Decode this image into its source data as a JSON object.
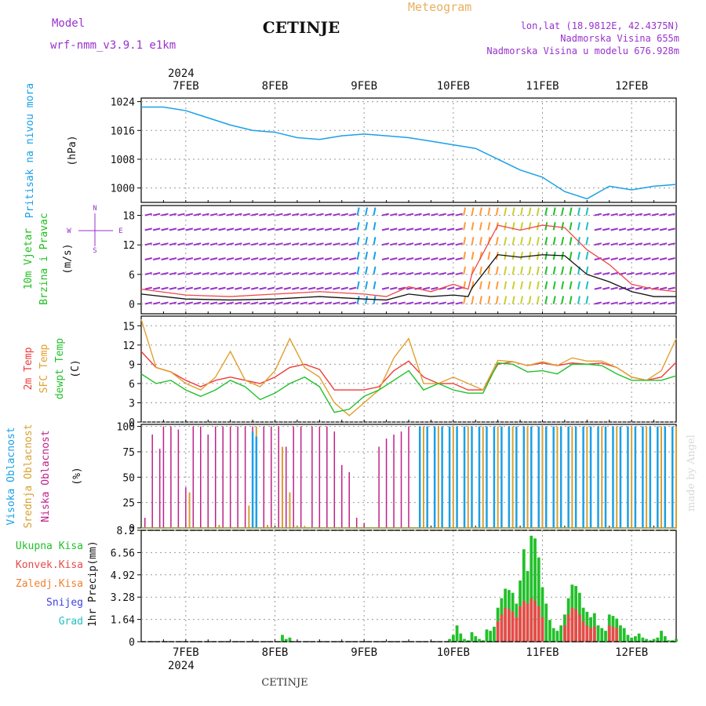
{
  "header": {
    "model_label": "Model",
    "model_name": "wrf-nmm_v3.9.1  e1km",
    "station": "CETINJE",
    "product": "Meteogram",
    "lonlat": "lon,lat (18.9812E, 42.4375N)",
    "elevation": "Nadmorska Visina 655m",
    "model_elevation": "Nadmorska Visina u modelu 676.928m",
    "year": "2024",
    "footer_station": "CETINJE",
    "credit": "made by Angel"
  },
  "colors": {
    "pressure": "#1aa0e8",
    "wind_label": "#1fbf1f",
    "wind_dir": "#9932cc",
    "t2m": "#f03a3a",
    "sfc": "#e0a030",
    "dew": "#22c02a",
    "cloud_high": "#1aa0e8",
    "cloud_mid": "#d8a030",
    "cloud_low": "#c0208a",
    "precip_total": "#22c02a",
    "precip_conv": "#e84a4a",
    "precip_frz": "#f08030",
    "precip_snow": "#4040e0",
    "precip_hail": "#20c0c0"
  },
  "chart_data": [
    {
      "type": "line",
      "panel": "pressure",
      "ylabel": [
        "Pritisak na nivou mora",
        "(hPa)"
      ],
      "yticks": [
        1000,
        1008,
        1016,
        1024
      ],
      "ylim": [
        996,
        1025
      ],
      "xticks": [
        "7FEB",
        "8FEB",
        "9FEB",
        "10FEB",
        "11FEB",
        "12FEB"
      ],
      "grid": true,
      "x": [
        0,
        6,
        12,
        18,
        24,
        30,
        36,
        42,
        48,
        54,
        60,
        66,
        72,
        78,
        84,
        90,
        96,
        102,
        108,
        114,
        120,
        126,
        132,
        138,
        144
      ],
      "values": [
        1022.5,
        1022.5,
        1021.5,
        1019.5,
        1017.5,
        1016,
        1015.5,
        1014,
        1013.5,
        1014.5,
        1015,
        1014.5,
        1014,
        1013,
        1012,
        1011,
        1008,
        1005,
        1003,
        999,
        997,
        1000.5,
        999.5,
        1000.5,
        1001
      ]
    },
    {
      "type": "line",
      "panel": "wind",
      "ylabel": [
        "10m Vjetar",
        "Brzina i Pravac",
        "(m/s)"
      ],
      "compass": {
        "n": "N",
        "e": "E",
        "w": "W",
        "s": "S"
      },
      "yticks": [
        0,
        6,
        12,
        18
      ],
      "ylim": [
        -2,
        20
      ],
      "grid": true,
      "series": [
        {
          "name": "speed",
          "x": [
            0,
            12,
            24,
            36,
            48,
            60,
            66,
            72,
            78,
            84,
            88,
            89,
            96,
            102,
            108,
            114,
            120,
            126,
            132,
            138,
            144
          ],
          "values": [
            2,
            1,
            0.8,
            1,
            1.5,
            1,
            0.8,
            2,
            1.5,
            1.8,
            1.5,
            3.2,
            10,
            9.5,
            10,
            9.8,
            6,
            4.5,
            2.5,
            1.5,
            1.5
          ]
        },
        {
          "name": "gust",
          "x": [
            0,
            12,
            24,
            36,
            48,
            60,
            66,
            72,
            78,
            84,
            88,
            89,
            96,
            102,
            108,
            114,
            120,
            126,
            132,
            138,
            144
          ],
          "values": [
            3,
            1.8,
            1.5,
            2,
            2.5,
            2,
            1.5,
            3.5,
            2.5,
            4,
            3,
            6,
            16,
            15,
            16,
            15.5,
            11,
            8,
            4,
            3,
            2.5
          ]
        }
      ]
    },
    {
      "type": "line",
      "panel": "temperature",
      "ylabel": [
        "2m Temp",
        "SFC Temp",
        "dewpt Temp",
        "(C)"
      ],
      "yticks": [
        0,
        3,
        6,
        9,
        12,
        15
      ],
      "ylim": [
        0,
        16.5
      ],
      "grid": true,
      "series": [
        {
          "name": "2m Temp",
          "x": [
            0,
            4,
            8,
            12,
            16,
            20,
            24,
            28,
            32,
            36,
            40,
            44,
            48,
            52,
            56,
            60,
            64,
            68,
            72,
            76,
            80,
            84,
            88,
            92,
            96,
            100,
            104,
            108,
            112,
            116,
            120,
            124,
            128,
            132,
            136,
            140,
            144
          ],
          "values": [
            11,
            8.5,
            7.8,
            6.5,
            5.5,
            6.5,
            7,
            6.5,
            6,
            7,
            8.5,
            9,
            8.2,
            5,
            5,
            5,
            5.5,
            8,
            9.5,
            7,
            6,
            6,
            5,
            5,
            9,
            9.4,
            8.8,
            9.2,
            8.8,
            9.2,
            9,
            9.2,
            8.5,
            7,
            6.5,
            7,
            9.3
          ]
        },
        {
          "name": "SFC Temp",
          "x": [
            0,
            4,
            8,
            12,
            16,
            20,
            24,
            28,
            32,
            36,
            40,
            44,
            48,
            52,
            56,
            60,
            64,
            68,
            72,
            76,
            80,
            84,
            88,
            92,
            96,
            100,
            104,
            108,
            112,
            116,
            120,
            124,
            128,
            132,
            136,
            140,
            144
          ],
          "values": [
            16,
            8.5,
            7.8,
            6,
            5,
            7,
            11,
            6.5,
            5.5,
            8,
            13,
            8.5,
            7,
            3,
            1,
            3,
            5,
            10,
            13,
            6,
            6,
            7,
            6,
            5,
            9.6,
            9.4,
            8.8,
            9.4,
            8.8,
            10,
            9.5,
            9.5,
            8.5,
            7,
            6.5,
            8,
            13
          ]
        },
        {
          "name": "dewpt Temp",
          "x": [
            0,
            4,
            8,
            12,
            16,
            20,
            24,
            28,
            32,
            36,
            40,
            44,
            48,
            52,
            56,
            60,
            64,
            68,
            72,
            76,
            80,
            84,
            88,
            92,
            96,
            100,
            104,
            108,
            112,
            116,
            120,
            124,
            128,
            132,
            136,
            140,
            144
          ],
          "values": [
            7.5,
            6,
            6.5,
            5,
            4,
            5,
            6.5,
            5.5,
            3.5,
            4.5,
            6,
            7,
            5.5,
            1.5,
            2,
            4,
            5,
            6.5,
            8,
            5,
            6,
            5,
            4.5,
            4.5,
            9.2,
            9,
            7.8,
            8,
            7.5,
            9,
            9,
            8.8,
            7.5,
            6.5,
            6.5,
            6.5,
            7.2
          ]
        }
      ]
    },
    {
      "type": "bar",
      "panel": "clouds",
      "ylabel": [
        "Visoka Oblacnost",
        "Srednja Oblacnost",
        "Niska Oblacnost",
        "(%)"
      ],
      "yticks": [
        0,
        25,
        50,
        75,
        100
      ],
      "ylim": [
        0,
        102
      ],
      "grid": true,
      "series": [
        {
          "name": "Niska Oblacnost",
          "x": [
            1,
            3,
            5,
            6,
            8,
            10,
            12,
            14,
            16,
            18,
            20,
            22,
            24,
            26,
            28,
            30,
            33,
            35,
            37,
            39,
            41,
            43,
            46,
            48,
            50,
            52,
            54,
            56,
            58,
            60,
            64,
            66,
            68,
            70,
            72
          ],
          "values": [
            10,
            92,
            78,
            100,
            100,
            97,
            40,
            100,
            100,
            92,
            100,
            100,
            100,
            100,
            100,
            100,
            100,
            100,
            100,
            80,
            100,
            100,
            100,
            100,
            100,
            95,
            62,
            55,
            10,
            5,
            80,
            88,
            92,
            95,
            100
          ]
        },
        {
          "name": "Srednja Oblacnost",
          "x": [
            13,
            21,
            29,
            31,
            34,
            38,
            40,
            42,
            44,
            76,
            80,
            84,
            88,
            92,
            96,
            100,
            104,
            108,
            112,
            116,
            120,
            124,
            128,
            132,
            136,
            140,
            144
          ],
          "values": [
            35,
            3,
            22,
            100,
            3,
            80,
            35,
            2,
            2,
            100,
            100,
            100,
            100,
            100,
            100,
            100,
            100,
            100,
            100,
            100,
            100,
            100,
            100,
            100,
            100,
            100,
            100
          ]
        },
        {
          "name": "Visoka Oblacnost",
          "x": [
            30,
            31,
            75,
            77,
            79,
            81,
            83,
            85,
            87,
            89,
            91,
            93,
            95,
            97,
            99,
            101,
            103,
            105,
            107,
            109,
            111,
            113,
            115,
            117,
            119,
            121,
            123,
            125,
            127,
            129,
            131,
            133,
            135,
            137,
            139,
            141,
            143
          ],
          "values": [
            95,
            90,
            100,
            100,
            100,
            100,
            100,
            100,
            100,
            100,
            100,
            100,
            100,
            100,
            100,
            100,
            100,
            100,
            100,
            100,
            100,
            100,
            100,
            100,
            100,
            100,
            100,
            100,
            100,
            100,
            100,
            100,
            100,
            100,
            100,
            100,
            100
          ]
        }
      ]
    },
    {
      "type": "bar",
      "panel": "precip",
      "ylabel": [
        "1hr Precip",
        "(mm)"
      ],
      "legend": [
        "Ukupna  Kisa",
        "Konvek.Kisa",
        "Zaledj.Kisa",
        "Snijeg",
        "Grad"
      ],
      "yticks": [
        0,
        1.64,
        3.28,
        4.92,
        6.56,
        8.2
      ],
      "ylim": [
        0,
        8.2
      ],
      "xticks": [
        "7FEB",
        "8FEB",
        "9FEB",
        "10FEB",
        "11FEB",
        "12FEB"
      ],
      "grid": true,
      "series": [
        {
          "name": "Ukupna  Kisa",
          "x": [
            38,
            39,
            40,
            83,
            84,
            85,
            86,
            87,
            88,
            89,
            90,
            91,
            92,
            93,
            94,
            95,
            96,
            97,
            98,
            99,
            100,
            101,
            102,
            103,
            104,
            105,
            106,
            107,
            108,
            109,
            110,
            111,
            112,
            113,
            114,
            115,
            116,
            117,
            118,
            119,
            120,
            121,
            122,
            123,
            124,
            125,
            126,
            127,
            128,
            129,
            130,
            131,
            132,
            133,
            134,
            135,
            136,
            137,
            138,
            139,
            140,
            141,
            142,
            143,
            144
          ],
          "values": [
            0.5,
            0.2,
            0.3,
            0.2,
            0.5,
            1.2,
            0.6,
            0.2,
            0.1,
            0.7,
            0.4,
            0.2,
            0.1,
            0.9,
            0.8,
            1.1,
            2.5,
            3.2,
            3.9,
            3.8,
            3.6,
            2.8,
            4.5,
            6.8,
            5.2,
            7.8,
            7.6,
            6.2,
            4.0,
            2.8,
            1.6,
            1.0,
            0.8,
            1.2,
            2.0,
            3.2,
            4.2,
            4.1,
            3.6,
            2.5,
            2.2,
            1.8,
            2.1,
            1.2,
            1.0,
            0.8,
            2.0,
            1.9,
            1.7,
            1.2,
            1.0,
            0.5,
            0.3,
            0.4,
            0.6,
            0.3,
            0.2,
            0.1,
            0.2,
            0.3,
            0.8,
            0.4,
            0.1,
            0.1,
            0.2
          ]
        },
        {
          "name": "Konvek.Kisa",
          "x": [
            96,
            97,
            98,
            99,
            100,
            101,
            102,
            103,
            104,
            105,
            106,
            107,
            108,
            114,
            115,
            116,
            117,
            118,
            119,
            120,
            121,
            122,
            126,
            127,
            128
          ],
          "values": [
            1.5,
            2.0,
            2.5,
            2.4,
            2.2,
            1.8,
            2.6,
            3.0,
            2.8,
            3.2,
            3.0,
            2.6,
            1.8,
            1.2,
            2.0,
            2.5,
            2.4,
            2.0,
            1.5,
            1.2,
            1.0,
            1.1,
            1.2,
            1.1,
            1.0
          ]
        }
      ]
    }
  ]
}
